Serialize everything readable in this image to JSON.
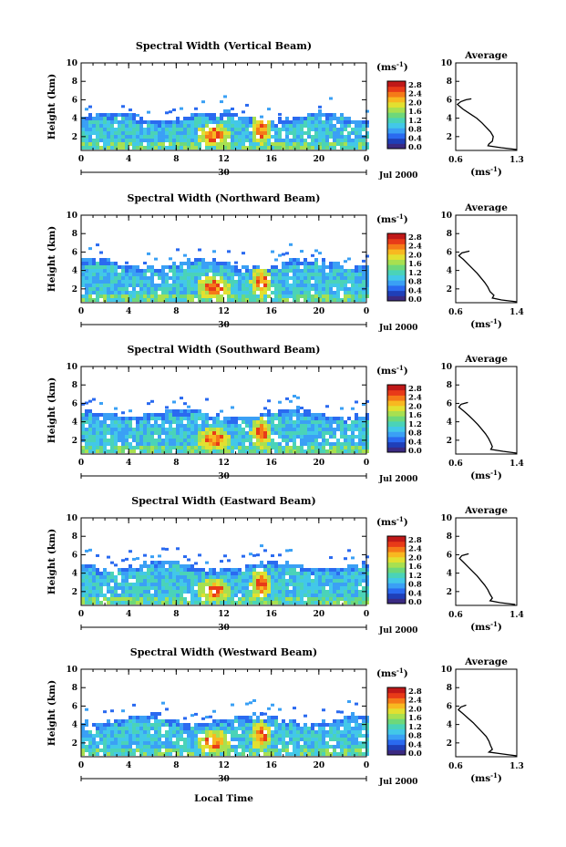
{
  "figure": {
    "bottom_label": "Local Time",
    "date_label": "Jul 2000",
    "day_label": "30"
  },
  "colors": {
    "scale": [
      "#3b2a82",
      "#1f3fb8",
      "#2a6af0",
      "#3aa0f5",
      "#42c8e8",
      "#4ad3b8",
      "#6ed87a",
      "#a8e050",
      "#e2e030",
      "#f8b820",
      "#f57a18",
      "#e83a18",
      "#c01818"
    ],
    "background": "#ffffff"
  },
  "colorbar": {
    "unit_label": "(ms",
    "unit_exp": "-1",
    "unit_close": ")",
    "ticks": [
      "2.8",
      "2.4",
      "2.0",
      "1.6",
      "1.2",
      "0.8",
      "0.4",
      "0.0"
    ]
  },
  "chart_data": [
    {
      "type": "heatmap",
      "title": "Spectral Width (Vertical Beam)",
      "ylabel": "Height (km)",
      "xlabel": "Local Time",
      "xlim": [
        0,
        24
      ],
      "ylim": [
        0.5,
        10
      ],
      "xticks": [
        "0",
        "4",
        "8",
        "12",
        "16",
        "20",
        "0"
      ],
      "yticks": [
        "10",
        "8",
        "6",
        "4",
        "2"
      ],
      "cloud_top_km": 4.0,
      "color_range": [
        0.0,
        2.8
      ],
      "profile": {
        "title": "Average",
        "xlabel": "(ms",
        "xlabel_exp": "-1",
        "xlabel_close": ")",
        "xticks": [
          "0.6",
          "1.3"
        ],
        "xlim": [
          0.6,
          1.3
        ],
        "yticks": [
          "10",
          "8",
          "6",
          "4",
          "2"
        ],
        "ylim": [
          0.5,
          10
        ],
        "heights": [
          0.6,
          0.8,
          1.0,
          1.2,
          1.5,
          2.0,
          2.5,
          3.0,
          3.5,
          4.0,
          4.5,
          5.0,
          5.5,
          5.8,
          6.0,
          6.1
        ],
        "values": [
          1.3,
          1.12,
          0.97,
          0.98,
          1.02,
          1.03,
          1.0,
          0.95,
          0.9,
          0.84,
          0.76,
          0.68,
          0.62,
          0.66,
          0.72,
          0.78
        ]
      }
    },
    {
      "type": "heatmap",
      "title": "Spectral Width (Northward Beam)",
      "ylabel": "Height (km)",
      "xlabel": "Local Time",
      "xlim": [
        0,
        24
      ],
      "ylim": [
        0.5,
        10
      ],
      "xticks": [
        "0",
        "4",
        "8",
        "12",
        "16",
        "20",
        "0"
      ],
      "yticks": [
        "10",
        "8",
        "6",
        "4",
        "2"
      ],
      "cloud_top_km": 4.6,
      "color_range": [
        0.0,
        2.8
      ],
      "profile": {
        "title": "Average",
        "xlabel": "(ms",
        "xlabel_exp": "-1",
        "xlabel_close": ")",
        "xticks": [
          "0.6",
          "1.4"
        ],
        "xlim": [
          0.6,
          1.4
        ],
        "yticks": [
          "10",
          "8",
          "6",
          "4",
          "2"
        ],
        "ylim": [
          0.5,
          10
        ],
        "heights": [
          0.6,
          0.8,
          1.0,
          1.3,
          1.7,
          2.2,
          2.7,
          3.2,
          3.7,
          4.2,
          4.7,
          5.2,
          5.6,
          5.9,
          6.1
        ],
        "values": [
          1.4,
          1.2,
          1.08,
          1.1,
          1.05,
          1.02,
          0.98,
          0.93,
          0.88,
          0.82,
          0.76,
          0.7,
          0.64,
          0.68,
          0.78
        ]
      }
    },
    {
      "type": "heatmap",
      "title": "Spectral Width (Southward Beam)",
      "ylabel": "Height (km)",
      "xlabel": "Local Time",
      "xlim": [
        0,
        24
      ],
      "ylim": [
        0.5,
        10
      ],
      "xticks": [
        "0",
        "4",
        "8",
        "12",
        "16",
        "20",
        "0"
      ],
      "yticks": [
        "10",
        "8",
        "6",
        "4",
        "2"
      ],
      "cloud_top_km": 4.8,
      "color_range": [
        0.0,
        2.8
      ],
      "profile": {
        "title": "Average",
        "xlabel": "(ms",
        "xlabel_exp": "-1",
        "xlabel_close": ")",
        "xticks": [
          "0.6",
          "1.4"
        ],
        "xlim": [
          0.6,
          1.4
        ],
        "yticks": [
          "10",
          "8",
          "6",
          "4",
          "2"
        ],
        "ylim": [
          0.5,
          10
        ],
        "heights": [
          0.6,
          0.8,
          1.0,
          1.3,
          1.7,
          2.2,
          2.7,
          3.2,
          3.7,
          4.2,
          4.7,
          5.2,
          5.6,
          5.9,
          6.1
        ],
        "values": [
          1.4,
          1.22,
          1.06,
          1.08,
          1.06,
          1.03,
          0.99,
          0.94,
          0.89,
          0.83,
          0.77,
          0.7,
          0.64,
          0.67,
          0.76
        ]
      }
    },
    {
      "type": "heatmap",
      "title": "Spectral Width (Eastward Beam)",
      "ylabel": "Height (km)",
      "xlabel": "Local Time",
      "xlim": [
        0,
        24
      ],
      "ylim": [
        0.5,
        10
      ],
      "xticks": [
        "0",
        "4",
        "8",
        "12",
        "16",
        "20",
        "0"
      ],
      "yticks": [
        "10",
        "8",
        "6",
        "4",
        "2"
      ],
      "cloud_top_km": 4.7,
      "color_range": [
        0.0,
        2.8
      ],
      "profile": {
        "title": "Average",
        "xlabel": "(ms",
        "xlabel_exp": "-1",
        "xlabel_close": ")",
        "xticks": [
          "0.6",
          "1.4"
        ],
        "xlim": [
          0.6,
          1.4
        ],
        "yticks": [
          "10",
          "8",
          "6",
          "4",
          "2"
        ],
        "ylim": [
          0.5,
          10
        ],
        "heights": [
          0.6,
          0.8,
          1.0,
          1.3,
          1.7,
          2.2,
          2.7,
          3.2,
          3.7,
          4.2,
          4.7,
          5.2,
          5.6,
          5.9,
          6.1
        ],
        "values": [
          1.38,
          1.18,
          1.05,
          1.08,
          1.05,
          1.02,
          0.98,
          0.93,
          0.88,
          0.82,
          0.76,
          0.7,
          0.65,
          0.68,
          0.77
        ]
      }
    },
    {
      "type": "heatmap",
      "title": "Spectral Width (Westward Beam)",
      "ylabel": "Height (km)",
      "xlabel": "Local Time",
      "xlim": [
        0,
        24
      ],
      "ylim": [
        0.5,
        10
      ],
      "xticks": [
        "0",
        "4",
        "8",
        "12",
        "16",
        "20",
        "0"
      ],
      "yticks": [
        "10",
        "8",
        "6",
        "4",
        "2"
      ],
      "cloud_top_km": 4.4,
      "color_range": [
        0.0,
        2.8
      ],
      "profile": {
        "title": "Average",
        "xlabel": "(ms",
        "xlabel_exp": "-1",
        "xlabel_close": ")",
        "xticks": [
          "0.6",
          "1.3"
        ],
        "xlim": [
          0.6,
          1.3
        ],
        "yticks": [
          "10",
          "8",
          "6",
          "4",
          "2"
        ],
        "ylim": [
          0.5,
          10
        ],
        "heights": [
          0.6,
          0.8,
          1.0,
          1.3,
          1.7,
          2.2,
          2.7,
          3.2,
          3.7,
          4.2,
          4.7,
          5.2,
          5.6,
          5.9,
          6.1
        ],
        "values": [
          1.3,
          1.14,
          0.98,
          1.02,
          1.0,
          0.98,
          0.95,
          0.9,
          0.85,
          0.8,
          0.74,
          0.68,
          0.63,
          0.66,
          0.72
        ]
      }
    }
  ]
}
